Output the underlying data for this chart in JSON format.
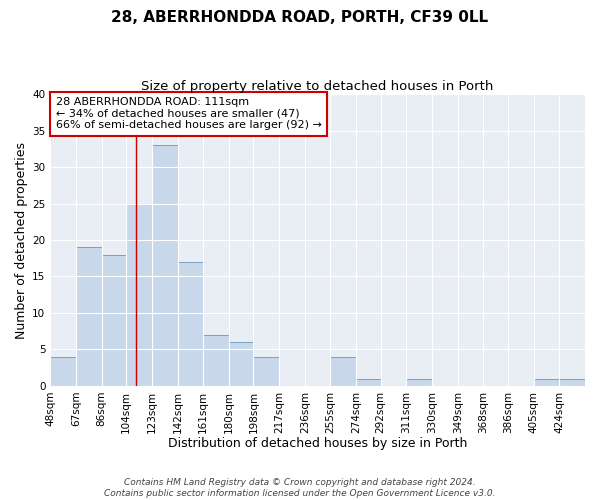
{
  "title": "28, ABERRHONDDA ROAD, PORTH, CF39 0LL",
  "subtitle": "Size of property relative to detached houses in Porth",
  "xlabel": "Distribution of detached houses by size in Porth",
  "ylabel": "Number of detached properties",
  "bar_labels": [
    "48sqm",
    "67sqm",
    "86sqm",
    "104sqm",
    "123sqm",
    "142sqm",
    "161sqm",
    "180sqm",
    "198sqm",
    "217sqm",
    "236sqm",
    "255sqm",
    "274sqm",
    "292sqm",
    "311sqm",
    "330sqm",
    "349sqm",
    "368sqm",
    "386sqm",
    "405sqm",
    "424sqm"
  ],
  "bar_values": [
    4,
    19,
    18,
    25,
    33,
    17,
    7,
    6,
    4,
    0,
    0,
    4,
    1,
    0,
    1,
    0,
    0,
    0,
    0,
    1,
    1
  ],
  "bar_color": "#c8d8ea",
  "bar_edgecolor": "#6699bb",
  "property_line_x": 111,
  "bin_edges": [
    48,
    67,
    86,
    104,
    123,
    142,
    161,
    180,
    198,
    217,
    236,
    255,
    274,
    292,
    311,
    330,
    349,
    368,
    386,
    405,
    424,
    443
  ],
  "vline_color": "#cc0000",
  "annotation_line1": "28 ABERRHONDDA ROAD: 111sqm",
  "annotation_line2": "← 34% of detached houses are smaller (47)",
  "annotation_line3": "66% of semi-detached houses are larger (92) →",
  "annotation_box_edgecolor": "#cc0000",
  "annotation_box_facecolor": "#ffffff",
  "ylim": [
    0,
    40
  ],
  "yticks": [
    0,
    5,
    10,
    15,
    20,
    25,
    30,
    35,
    40
  ],
  "footer": "Contains HM Land Registry data © Crown copyright and database right 2024.\nContains public sector information licensed under the Open Government Licence v3.0.",
  "bg_color": "#ffffff",
  "plot_bg_color": "#e8eef4",
  "grid_color": "#ffffff",
  "title_fontsize": 11,
  "subtitle_fontsize": 9.5,
  "axis_label_fontsize": 9,
  "tick_fontsize": 7.5,
  "annotation_fontsize": 8,
  "footer_fontsize": 6.5
}
